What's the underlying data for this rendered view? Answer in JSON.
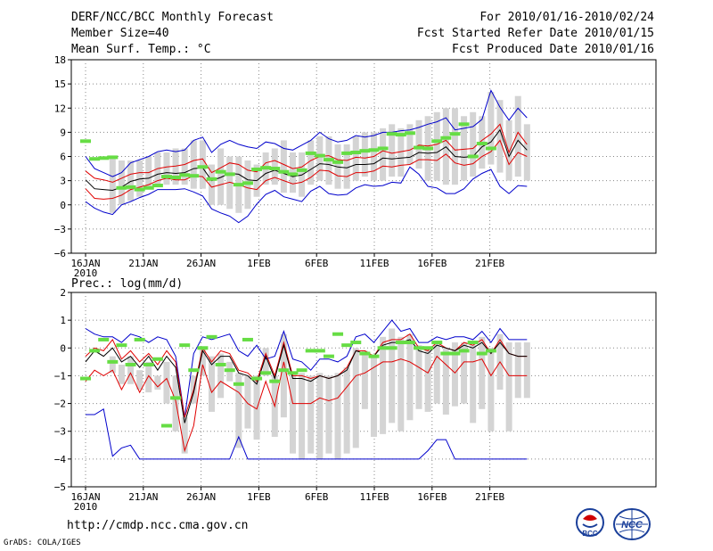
{
  "header": {
    "title": "DERF/NCC/BCC Monthly Forecast",
    "member_size": "Member Size=40",
    "variable": "Mean Surf. Temp.: °C",
    "period": "For 2010/01/16-2010/02/24",
    "started": "Fcst Started Refer Date 2010/01/15",
    "produced": "Fcst Produced Date 2010/01/16"
  },
  "footer": {
    "url": "http://cmdp.ncc.cma.gov.cn",
    "credit": "GrADS: COLA/IGES",
    "logo_left_text": "BCC",
    "logo_right_text": "NCC"
  },
  "colors": {
    "ensemble_mean": "#000000",
    "spread": "#e00000",
    "extremes": "#0000cc",
    "obs": "#66dd44",
    "box": "#d4d4d4"
  },
  "chart_data": [
    {
      "type": "line",
      "title": "Mean Surf. Temp.: °C",
      "x_tick_labels": [
        "16JAN",
        "21JAN",
        "26JAN",
        "1FEB",
        "6FEB",
        "11FEB",
        "16FEB",
        "21FEB"
      ],
      "x_year_label": "2010",
      "ylim": [
        -6,
        18
      ],
      "y_ticks": [
        "18",
        "15",
        "12",
        "9",
        "6",
        "3",
        "0",
        "−3",
        "−6"
      ],
      "day_index_start": 0,
      "series": [
        {
          "name": "max",
          "values": [
            6.0,
            4.5,
            4.0,
            3.5,
            4.0,
            5.2,
            5.6,
            6.0,
            6.6,
            6.8,
            6.6,
            6.8,
            8.0,
            8.4,
            6.5,
            7.5,
            8.0,
            7.5,
            7.2,
            7.0,
            7.8,
            7.6,
            7.0,
            6.8,
            7.4,
            8.0,
            9.0,
            8.2,
            7.8,
            8.0,
            8.6,
            8.4,
            8.6,
            9.0,
            9.0,
            9.2,
            9.3,
            9.6,
            10.0,
            10.3,
            10.8,
            9.3,
            9.5,
            9.7,
            10.6,
            14.2,
            12.1,
            10.5,
            12.0,
            10.8
          ]
        },
        {
          "name": "upper",
          "values": [
            4.2,
            3.3,
            3.1,
            2.8,
            3.3,
            3.8,
            4.0,
            4.0,
            4.5,
            4.7,
            4.8,
            5.0,
            5.5,
            5.7,
            4.0,
            4.6,
            5.2,
            5.0,
            4.3,
            4.1,
            5.2,
            5.5,
            5.0,
            4.5,
            4.7,
            5.5,
            6.0,
            6.1,
            5.6,
            5.5,
            5.9,
            5.8,
            6.0,
            6.7,
            6.4,
            6.6,
            6.8,
            7.4,
            7.3,
            7.5,
            8.0,
            6.8,
            6.9,
            7.0,
            8.0,
            8.8,
            10.0,
            6.5,
            9.0,
            7.5
          ]
        },
        {
          "name": "mean",
          "values": [
            3.1,
            2.0,
            1.9,
            1.8,
            2.2,
            2.9,
            3.2,
            3.3,
            3.8,
            4.0,
            3.9,
            4.0,
            4.5,
            4.6,
            3.0,
            3.4,
            3.9,
            3.8,
            3.1,
            3.0,
            3.9,
            4.3,
            3.9,
            3.5,
            3.7,
            4.4,
            5.1,
            5.0,
            4.7,
            4.6,
            5.0,
            5.0,
            5.1,
            5.8,
            5.7,
            5.8,
            5.9,
            6.5,
            6.4,
            6.5,
            7.2,
            6.0,
            5.9,
            6.0,
            7.2,
            7.8,
            9.3,
            6.0,
            8.0,
            6.8
          ]
        },
        {
          "name": "lower",
          "values": [
            2.0,
            0.8,
            0.7,
            0.8,
            1.2,
            1.9,
            2.2,
            2.5,
            3.0,
            3.3,
            3.1,
            3.1,
            3.6,
            3.5,
            2.2,
            2.5,
            2.8,
            2.5,
            2.1,
            1.9,
            3.0,
            3.4,
            3.0,
            2.6,
            2.8,
            3.4,
            4.3,
            4.2,
            3.6,
            3.5,
            4.0,
            4.0,
            4.2,
            4.8,
            4.7,
            4.9,
            5.0,
            5.6,
            5.6,
            5.5,
            6.3,
            5.2,
            4.9,
            5.1,
            6.0,
            6.6,
            8.0,
            5.0,
            6.5,
            6.0
          ]
        },
        {
          "name": "min",
          "values": [
            0.4,
            -0.4,
            -0.9,
            -1.2,
            0.0,
            0.4,
            0.9,
            1.3,
            1.9,
            1.9,
            1.9,
            2.0,
            1.6,
            1.1,
            -0.5,
            -1.0,
            -1.4,
            -2.2,
            -1.4,
            0.1,
            1.3,
            1.8,
            1.0,
            0.7,
            0.4,
            1.7,
            2.3,
            1.4,
            1.2,
            1.3,
            2.1,
            2.5,
            2.3,
            2.4,
            2.8,
            2.7,
            4.7,
            3.8,
            2.3,
            2.1,
            1.4,
            1.4,
            2.0,
            3.2,
            3.9,
            4.4,
            2.3,
            1.4,
            2.4,
            2.3
          ]
        },
        {
          "name": "observed",
          "values": [
            7.9,
            5.7,
            5.8,
            5.9,
            2.1,
            2.2,
            1.9,
            2.1,
            2.4,
            3.5,
            3.4,
            3.7,
            3.6,
            4.7,
            3.2,
            4.1,
            3.8,
            2.5,
            2.7,
            4.4,
            4.6,
            4.5,
            4.1,
            3.8,
            4.3,
            6.4,
            6.1,
            5.6,
            5.3,
            6.4,
            6.5,
            6.7,
            6.8,
            7.0,
            8.8,
            8.7,
            8.9,
            7.1,
            7.0,
            7.9,
            8.3,
            8.8,
            10.0,
            6.0,
            7.6,
            7.0
          ]
        }
      ],
      "box_spread": {
        "upper": [
          5.5,
          4.0,
          3.5,
          6.0,
          5.5,
          5.5,
          5.5,
          6.0,
          6.5,
          6.5,
          7.0,
          7.0,
          8.0,
          8.0,
          5.0,
          7.0,
          6.0,
          6.0,
          5.5,
          5.0,
          6.5,
          7.0,
          8.0,
          6.5,
          6.5,
          8.0,
          8.5,
          8.5,
          7.5,
          7.5,
          8.5,
          9.0,
          9.0,
          9.5,
          10.0,
          9.5,
          10.0,
          10.5,
          11.0,
          11.5,
          12.0,
          12.0,
          11.0,
          11.5,
          11.0,
          14.0,
          13.0,
          10.5,
          13.5,
          10.0
        ],
        "lower": [
          2.5,
          1.5,
          1.0,
          -1.0,
          0.0,
          0.5,
          1.0,
          2.0,
          2.5,
          2.5,
          2.5,
          2.5,
          2.0,
          2.0,
          0.0,
          0.0,
          -0.5,
          -1.0,
          -0.5,
          1.0,
          2.5,
          2.5,
          1.5,
          1.5,
          1.0,
          2.5,
          3.0,
          2.5,
          2.0,
          2.0,
          3.0,
          3.5,
          3.0,
          3.0,
          3.5,
          3.5,
          5.0,
          4.5,
          3.0,
          3.0,
          2.5,
          2.5,
          3.0,
          3.5,
          4.5,
          5.0,
          4.0,
          3.0,
          3.5,
          3.0
        ]
      }
    },
    {
      "type": "line",
      "title": "Prec.: log(mm/d)",
      "x_tick_labels": [
        "16JAN",
        "21JAN",
        "26JAN",
        "1FEB",
        "6FEB",
        "11FEB",
        "16FEB",
        "21FEB"
      ],
      "x_year_label": "2010",
      "ylim": [
        -5,
        2
      ],
      "y_ticks": [
        "2",
        "1",
        "0",
        "−1",
        "−2",
        "−3",
        "−4",
        "−5"
      ],
      "series": [
        {
          "name": "max",
          "values": [
            0.7,
            0.5,
            0.4,
            0.4,
            0.2,
            0.5,
            0.4,
            0.2,
            0.4,
            0.3,
            -0.3,
            -2.5,
            -0.2,
            0.4,
            0.3,
            0.4,
            0.5,
            -0.1,
            -0.3,
            0.1,
            -0.4,
            -0.3,
            0.6,
            -0.4,
            -0.5,
            -0.8,
            -0.4,
            -0.4,
            -0.5,
            -0.3,
            0.4,
            0.5,
            0.2,
            0.6,
            1.0,
            0.6,
            0.7,
            0.2,
            0.2,
            0.4,
            0.3,
            0.4,
            0.4,
            0.3,
            0.6,
            0.2,
            0.7,
            0.3,
            0.3,
            0.3
          ]
        },
        {
          "name": "upper",
          "values": [
            -0.3,
            0.0,
            -0.1,
            0.3,
            -0.4,
            -0.1,
            -0.5,
            -0.2,
            -0.6,
            -0.1,
            -0.5,
            -2.5,
            -1.5,
            0.0,
            -0.5,
            -0.1,
            -0.2,
            -0.8,
            -0.9,
            -1.2,
            -0.2,
            -1.0,
            0.2,
            -1.0,
            -1.0,
            -1.1,
            -1.0,
            -1.1,
            -1.0,
            -0.7,
            -0.1,
            -0.1,
            -0.3,
            0.2,
            0.3,
            0.3,
            0.5,
            0.0,
            -0.1,
            0.2,
            0.0,
            -0.1,
            0.2,
            0.1,
            0.3,
            -0.2,
            0.3,
            -0.2,
            -0.3,
            -0.3
          ]
        },
        {
          "name": "mean",
          "values": [
            -0.5,
            -0.1,
            -0.3,
            0.0,
            -0.5,
            -0.3,
            -0.7,
            -0.3,
            -0.8,
            -0.3,
            -0.7,
            -2.7,
            -1.6,
            -0.1,
            -0.6,
            -0.3,
            -0.3,
            -0.9,
            -1.0,
            -1.3,
            -0.3,
            -1.1,
            0.1,
            -1.1,
            -1.1,
            -1.2,
            -1.0,
            -1.1,
            -1.0,
            -0.8,
            -0.1,
            -0.2,
            -0.3,
            0.1,
            0.2,
            0.2,
            0.3,
            -0.1,
            -0.2,
            0.1,
            0.0,
            -0.1,
            0.1,
            0.0,
            0.2,
            -0.2,
            0.2,
            -0.2,
            -0.3,
            -0.3
          ]
        },
        {
          "name": "lower",
          "values": [
            -1.2,
            -0.8,
            -1.0,
            -0.8,
            -1.5,
            -0.9,
            -1.6,
            -1.0,
            -1.4,
            -1.1,
            -1.9,
            -3.7,
            -2.8,
            -0.6,
            -1.6,
            -1.2,
            -1.4,
            -1.6,
            -2.0,
            -2.2,
            -1.2,
            -2.1,
            -0.5,
            -2.0,
            -2.0,
            -2.0,
            -1.8,
            -1.9,
            -1.8,
            -1.4,
            -1.0,
            -0.9,
            -0.7,
            -0.5,
            -0.5,
            -0.4,
            -0.5,
            -0.7,
            -0.9,
            -0.3,
            -0.6,
            -0.9,
            -0.5,
            -0.5,
            -0.4,
            -1.0,
            -0.5,
            -1.0,
            -1.0,
            -1.0
          ]
        },
        {
          "name": "min",
          "values": [
            -2.4,
            -2.4,
            -2.2,
            -3.9,
            -3.6,
            -3.5,
            -4.0,
            -4.0,
            -4.0,
            -4.0,
            -4.0,
            -4.0,
            -4.0,
            -4.0,
            -4.0,
            -4.0,
            -4.0,
            -3.2,
            -4.0,
            -4.0,
            -4.0,
            -4.0,
            -4.0,
            -4.0,
            -4.0,
            -4.0,
            -4.0,
            -4.0,
            -4.0,
            -4.0,
            -4.0,
            -4.0,
            -4.0,
            -4.0,
            -4.0,
            -4.0,
            -4.0,
            -4.0,
            -3.7,
            -3.3,
            -3.3,
            -4.0,
            -4.0,
            -4.0,
            -4.0,
            -4.0,
            -4.0,
            -4.0,
            -4.0,
            -4.0
          ]
        },
        {
          "name": "observed",
          "values": [
            -1.1,
            -0.1,
            0.3,
            -0.5,
            0.1,
            -0.6,
            0.3,
            -0.6,
            -0.4,
            -2.8,
            -1.8,
            0.1,
            -0.8,
            0.0,
            0.4,
            -0.6,
            -0.8,
            -1.3,
            0.3,
            -1.1,
            -0.9,
            -1.2,
            -0.8,
            -0.9,
            -0.8,
            -0.1,
            -0.1,
            -0.3,
            0.5,
            0.1,
            0.2,
            -0.2,
            -0.3,
            0.0,
            0.0,
            0.2,
            0.2,
            0.0,
            0.0,
            0.2,
            -0.2,
            -0.2,
            -0.1,
            0.2,
            -0.2,
            -0.1
          ]
        },
        {
          "name": "box_top",
          "values": [
            -1.0,
            -0.3,
            -0.3,
            -0.3,
            -0.6,
            -0.3,
            -0.8,
            -0.5,
            -1.0,
            -0.5,
            -1.0,
            -2.5,
            -1.0,
            0.0,
            -0.3,
            -0.2,
            -0.5,
            -0.9,
            -1.0,
            -1.0,
            0.0,
            -1.0,
            0.5,
            -0.9,
            -0.9,
            -1.0,
            -0.9,
            -1.0,
            -0.9,
            -0.7,
            0.0,
            -0.1,
            -0.3,
            0.4,
            0.7,
            0.4,
            0.5,
            0.1,
            0.0,
            0.2,
            0.0,
            0.2,
            0.2,
            0.1,
            0.4,
            0.0,
            0.5,
            0.2,
            0.2,
            0.2
          ]
        },
        {
          "name": "box_bottom",
          "values": [
            -1.3,
            -0.9,
            -1.2,
            -0.9,
            -1.3,
            -1.3,
            -1.5,
            -1.6,
            -1.5,
            -2.0,
            -3.0,
            -3.8,
            -2.0,
            -1.0,
            -2.3,
            -1.8,
            -1.2,
            -3.6,
            -2.9,
            -3.3,
            -1.0,
            -3.2,
            -2.5,
            -3.8,
            -4.0,
            -3.8,
            -4.0,
            -3.8,
            -4.0,
            -3.8,
            -3.6,
            -2.2,
            -3.2,
            -3.1,
            -2.7,
            -3.0,
            -2.6,
            -2.2,
            -2.3,
            -2.0,
            -2.4,
            -2.1,
            -2.0,
            -2.7,
            -2.2,
            -3.0,
            -1.5,
            -3.0,
            -1.8,
            -1.8
          ]
        }
      ]
    }
  ]
}
